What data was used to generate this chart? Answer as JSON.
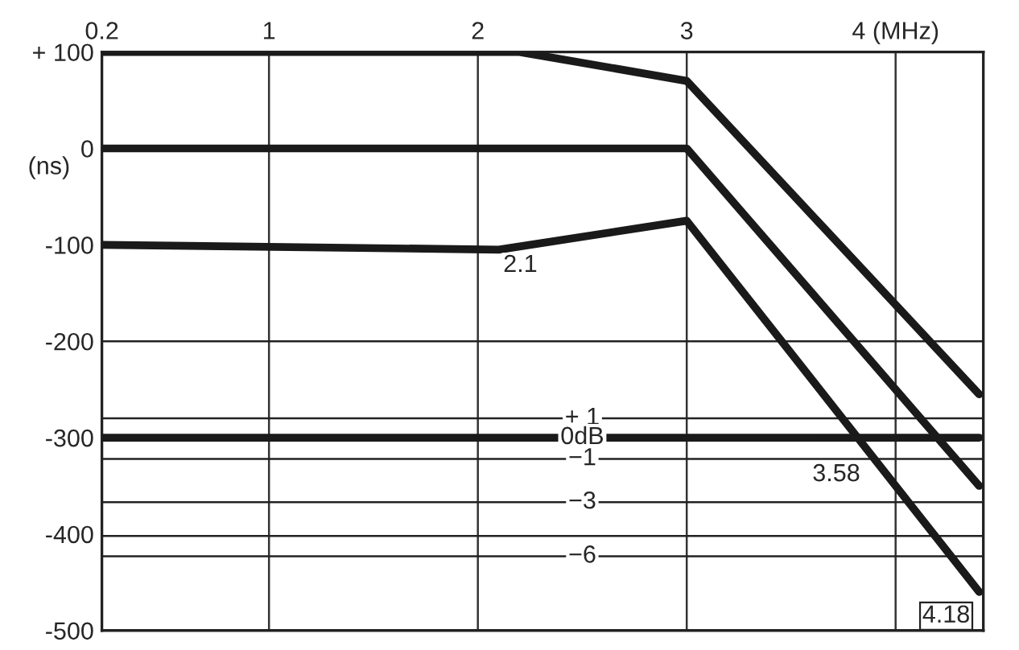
{
  "chart_data": {
    "type": "line",
    "ylabel": "(ns)",
    "xlim": [
      0.2,
      4.42
    ],
    "ylim": [
      -500,
      100
    ],
    "xticks": [
      0.2,
      1,
      2,
      3,
      {
        "value": 4,
        "label": "4 (MHz)"
      }
    ],
    "yticks": [
      {
        "value": 100,
        "label": "+ 100"
      },
      0,
      -100,
      -200,
      -300,
      -400,
      -500
    ],
    "grid": "x",
    "series": [
      {
        "color": "#1a1a1a",
        "x": [
          0.2,
          2.2,
          3,
          4.4
        ],
        "values": [
          100,
          100,
          70,
          -255
        ]
      },
      {
        "color": "#1a1a1a",
        "x": [
          0.2,
          3,
          4.4
        ],
        "values": [
          0,
          0,
          -350
        ]
      },
      {
        "color": "#1a1a1a",
        "x": [
          0.2,
          2.1,
          3,
          4.4
        ],
        "values": [
          -100,
          -105,
          -75,
          -460
        ]
      },
      {
        "color": "#1a1a1a",
        "x": [
          0.2,
          4.4
        ],
        "values": [
          -300,
          -300
        ]
      }
    ],
    "ref_lines": [
      {
        "axis": "y",
        "value": -200,
        "label": null
      },
      {
        "axis": "y",
        "value": -280,
        "label": null
      },
      {
        "axis": "y",
        "value": -322,
        "label": null
      },
      {
        "axis": "y",
        "value": -367,
        "label": null
      },
      {
        "axis": "y",
        "value": -402,
        "label": null
      },
      {
        "axis": "y",
        "value": -423,
        "label": null
      }
    ],
    "annotations": [
      {
        "text": "2.1",
        "x": 2.1,
        "y": -105
      },
      {
        "text": "3.58",
        "x": 3.58,
        "y": -322
      },
      {
        "text": "+ 1",
        "x": 2.5,
        "y": -280
      },
      {
        "text": "0dB",
        "x": 2.5,
        "y": -300
      },
      {
        "text": "−1",
        "x": 2.5,
        "y": -322
      },
      {
        "text": "−3",
        "x": 2.5,
        "y": -367
      },
      {
        "text": "−6",
        "x": 2.5,
        "y": -423
      },
      "4.18"
    ]
  }
}
